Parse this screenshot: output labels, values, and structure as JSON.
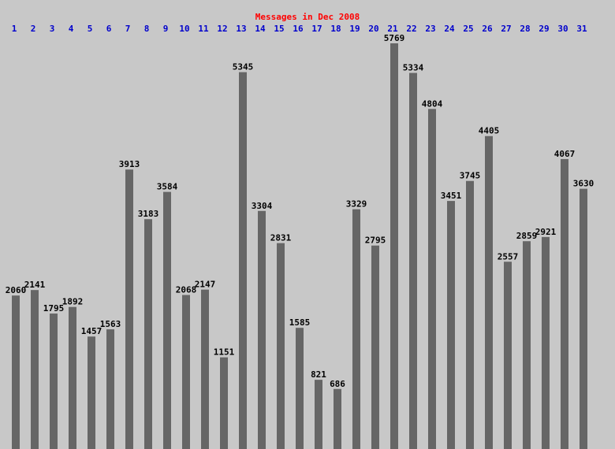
{
  "chart_data": {
    "type": "bar",
    "title": "Messages in Dec 2008",
    "categories": [
      "1",
      "2",
      "3",
      "4",
      "5",
      "6",
      "7",
      "8",
      "9",
      "10",
      "11",
      "12",
      "13",
      "14",
      "15",
      "16",
      "17",
      "18",
      "19",
      "20",
      "21",
      "22",
      "23",
      "24",
      "25",
      "26",
      "27",
      "28",
      "29",
      "30",
      "31"
    ],
    "values": [
      2060,
      2141,
      1795,
      1892,
      1457,
      1563,
      3913,
      3183,
      3584,
      2068,
      2147,
      1151,
      5345,
      3304,
      2831,
      1585,
      821,
      686,
      3329,
      2795,
      5769,
      5334,
      4804,
      3451,
      3745,
      4405,
      2557,
      2859,
      2921,
      4067,
      3630
    ],
    "color": "#666666"
  }
}
